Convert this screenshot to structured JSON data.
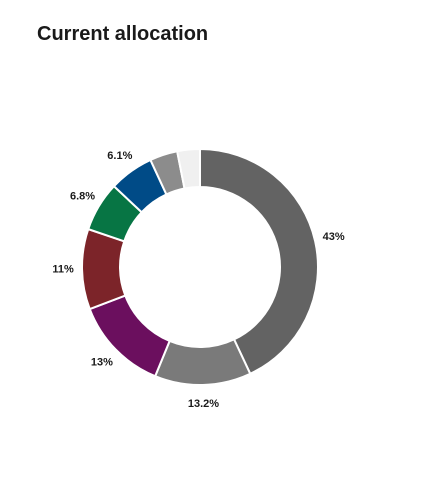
{
  "chart_data": {
    "type": "donut",
    "title": "Current allocation",
    "values": [
      43,
      13.2,
      13,
      11,
      6.8,
      6.1,
      3.8,
      3.1
    ],
    "value_labels": [
      "43%",
      "13.2%",
      "13%",
      "11%",
      "6.8%",
      "6.1%",
      null,
      null
    ],
    "colors": [
      "#636363",
      "#7a7a7a",
      "#6b0f5e",
      "#7c2429",
      "#077544",
      "#004b87",
      "#8c8c8c",
      "#f0f0f0"
    ]
  }
}
